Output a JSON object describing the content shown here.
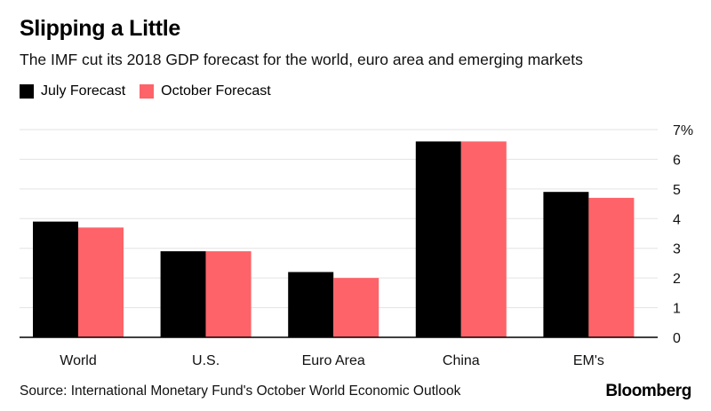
{
  "header": {
    "title": "Slipping a Little",
    "subtitle": "The IMF cut its 2018 GDP forecast for the world, euro area and emerging markets"
  },
  "footer": {
    "source": "Source: International Monetary Fund's October World Economic Outlook",
    "brand": "Bloomberg"
  },
  "colors": {
    "july": "#000000",
    "october": "#fd6368",
    "gridline": "#e3e3e3",
    "axis": "#000000"
  },
  "chart_data": {
    "type": "bar",
    "categories": [
      "World",
      "U.S.",
      "Euro Area",
      "China",
      "EM's"
    ],
    "series": [
      {
        "name": "July Forecast",
        "values": [
          3.9,
          2.9,
          2.2,
          6.6,
          4.9
        ]
      },
      {
        "name": "October Forecast",
        "values": [
          3.7,
          2.9,
          2.0,
          6.6,
          4.7
        ]
      }
    ],
    "ylim": [
      0,
      7
    ],
    "yticks": [
      0,
      1,
      2,
      3,
      4,
      5,
      6,
      7
    ],
    "ytick_labels": [
      "0",
      "1",
      "2",
      "3",
      "4",
      "5",
      "6",
      "7%"
    ],
    "y_axis_side": "right",
    "grid": true,
    "legend_position": "top-left",
    "xlabel": "",
    "ylabel": ""
  }
}
